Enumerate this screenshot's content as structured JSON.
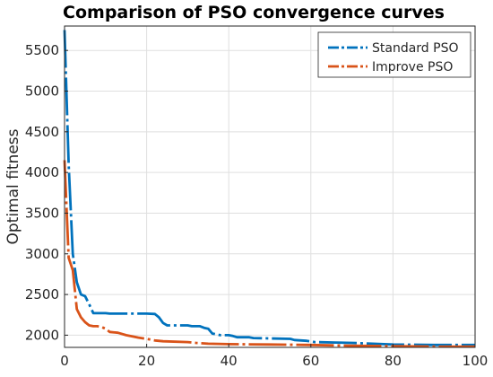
{
  "chart_data": {
    "type": "line",
    "title": "Comparison of PSO convergence curves",
    "xlabel": "",
    "ylabel": "Optimal fitness",
    "xlim": [
      0,
      100
    ],
    "ylim": [
      1850,
      5800
    ],
    "x_ticks": [
      0,
      20,
      40,
      60,
      80,
      100
    ],
    "y_ticks": [
      2000,
      2500,
      3000,
      3500,
      4000,
      4500,
      5000,
      5500
    ],
    "grid": true,
    "legend_position": "top-right",
    "series": [
      {
        "name": "Standard PSO",
        "color": "#0072BD",
        "line_style": "dash-dot",
        "points": [
          [
            0,
            5750
          ],
          [
            1,
            4100
          ],
          [
            2,
            3000
          ],
          [
            3,
            2650
          ],
          [
            4,
            2500
          ],
          [
            5,
            2480
          ],
          [
            6,
            2380
          ],
          [
            7,
            2270
          ],
          [
            10,
            2270
          ],
          [
            11,
            2265
          ],
          [
            20,
            2265
          ],
          [
            22,
            2260
          ],
          [
            23,
            2220
          ],
          [
            24,
            2150
          ],
          [
            25,
            2120
          ],
          [
            30,
            2120
          ],
          [
            31,
            2110
          ],
          [
            33,
            2110
          ],
          [
            34,
            2090
          ],
          [
            35,
            2080
          ],
          [
            36,
            2020
          ],
          [
            38,
            2000
          ],
          [
            40,
            2000
          ],
          [
            41,
            1990
          ],
          [
            42,
            1975
          ],
          [
            45,
            1975
          ],
          [
            46,
            1965
          ],
          [
            50,
            1960
          ],
          [
            55,
            1955
          ],
          [
            56,
            1940
          ],
          [
            59,
            1930
          ],
          [
            61,
            1915
          ],
          [
            66,
            1910
          ],
          [
            70,
            1905
          ],
          [
            75,
            1895
          ],
          [
            80,
            1885
          ],
          [
            90,
            1880
          ],
          [
            100,
            1880
          ]
        ]
      },
      {
        "name": "Improve PSO",
        "color": "#D95319",
        "line_style": "dash-dot",
        "points": [
          [
            0,
            4150
          ],
          [
            1,
            2950
          ],
          [
            2,
            2800
          ],
          [
            3,
            2320
          ],
          [
            4,
            2220
          ],
          [
            5,
            2160
          ],
          [
            6,
            2120
          ],
          [
            7,
            2110
          ],
          [
            8,
            2110
          ],
          [
            9,
            2100
          ],
          [
            10,
            2080
          ],
          [
            11,
            2040
          ],
          [
            13,
            2030
          ],
          [
            15,
            2000
          ],
          [
            18,
            1970
          ],
          [
            20,
            1955
          ],
          [
            22,
            1935
          ],
          [
            24,
            1925
          ],
          [
            30,
            1915
          ],
          [
            32,
            1905
          ],
          [
            35,
            1895
          ],
          [
            40,
            1890
          ],
          [
            50,
            1885
          ],
          [
            60,
            1880
          ],
          [
            70,
            1870
          ],
          [
            80,
            1865
          ],
          [
            90,
            1860
          ],
          [
            100,
            1860
          ]
        ]
      }
    ]
  }
}
